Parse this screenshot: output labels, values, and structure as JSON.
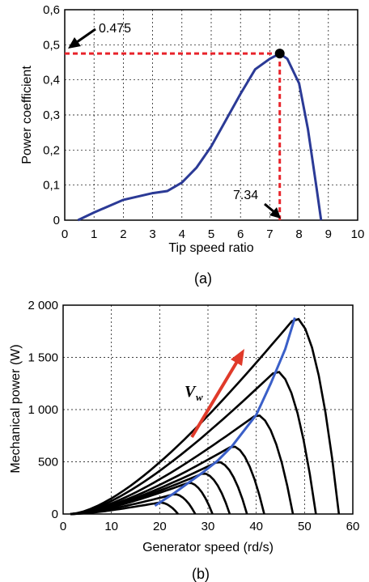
{
  "chart_data": [
    {
      "type": "line",
      "caption": "(a)",
      "xlabel": "Tip speed ratio",
      "ylabel": "Power coefficient",
      "xlim": [
        0,
        10
      ],
      "ylim": [
        0,
        0.6
      ],
      "xticks": [
        "0",
        "1",
        "2",
        "3",
        "4",
        "5",
        "6",
        "7",
        "8",
        "9",
        "10"
      ],
      "yticks": [
        "0",
        "0,1",
        "0,2",
        "0,3",
        "0,4",
        "0,5",
        "0,6"
      ],
      "grid": true,
      "colors": {
        "curve": "#2b3a96",
        "marker": "#e8232a",
        "arrow": "#000000"
      },
      "series": [
        {
          "x": [
            0.45,
            1.0,
            2.0,
            3.0,
            3.5,
            4.0,
            4.5,
            5.0,
            5.5,
            6.0,
            6.5,
            7.0,
            7.34,
            7.6,
            8.0,
            8.3,
            8.6,
            8.75
          ],
          "y": [
            0.0,
            0.022,
            0.058,
            0.077,
            0.083,
            0.107,
            0.15,
            0.21,
            0.285,
            0.36,
            0.43,
            0.46,
            0.475,
            0.46,
            0.39,
            0.26,
            0.09,
            0.0
          ]
        }
      ],
      "peak": {
        "x": 7.34,
        "y": 0.475
      },
      "annotations": {
        "ymax_label": "0.475",
        "xopt_label": "7.34"
      }
    },
    {
      "type": "line",
      "caption": "(b)",
      "xlabel": "Generator speed (rd/s)",
      "ylabel": "Mechanical power (W)",
      "xlim": [
        0,
        60
      ],
      "ylim": [
        0,
        2000
      ],
      "xticks": [
        "0",
        "10",
        "20",
        "30",
        "40",
        "50",
        "60"
      ],
      "yticks": [
        "0",
        "500",
        "1 000",
        "1 500",
        "2 000"
      ],
      "grid": true,
      "colors": {
        "curves": "#000000",
        "mppt": "#3a5fc8",
        "arrow": "#e03a2a"
      },
      "wind_label": "V",
      "wind_label_sub": "w",
      "curve_peaks": [
        {
          "x": 20,
          "y": 110
        },
        {
          "x": 23,
          "y": 190
        },
        {
          "x": 26,
          "y": 300
        },
        {
          "x": 29,
          "y": 390
        },
        {
          "x": 32,
          "y": 500
        },
        {
          "x": 35,
          "y": 650
        },
        {
          "x": 40,
          "y": 950
        },
        {
          "x": 44,
          "y": 1370
        },
        {
          "x": 48,
          "y": 1880
        }
      ],
      "mppt_curve": {
        "x": [
          19,
          23,
          26,
          29,
          32,
          35,
          38,
          40,
          43,
          46,
          48
        ],
        "y": [
          80,
          200,
          300,
          400,
          510,
          650,
          830,
          950,
          1250,
          1580,
          1880
        ]
      }
    }
  ]
}
